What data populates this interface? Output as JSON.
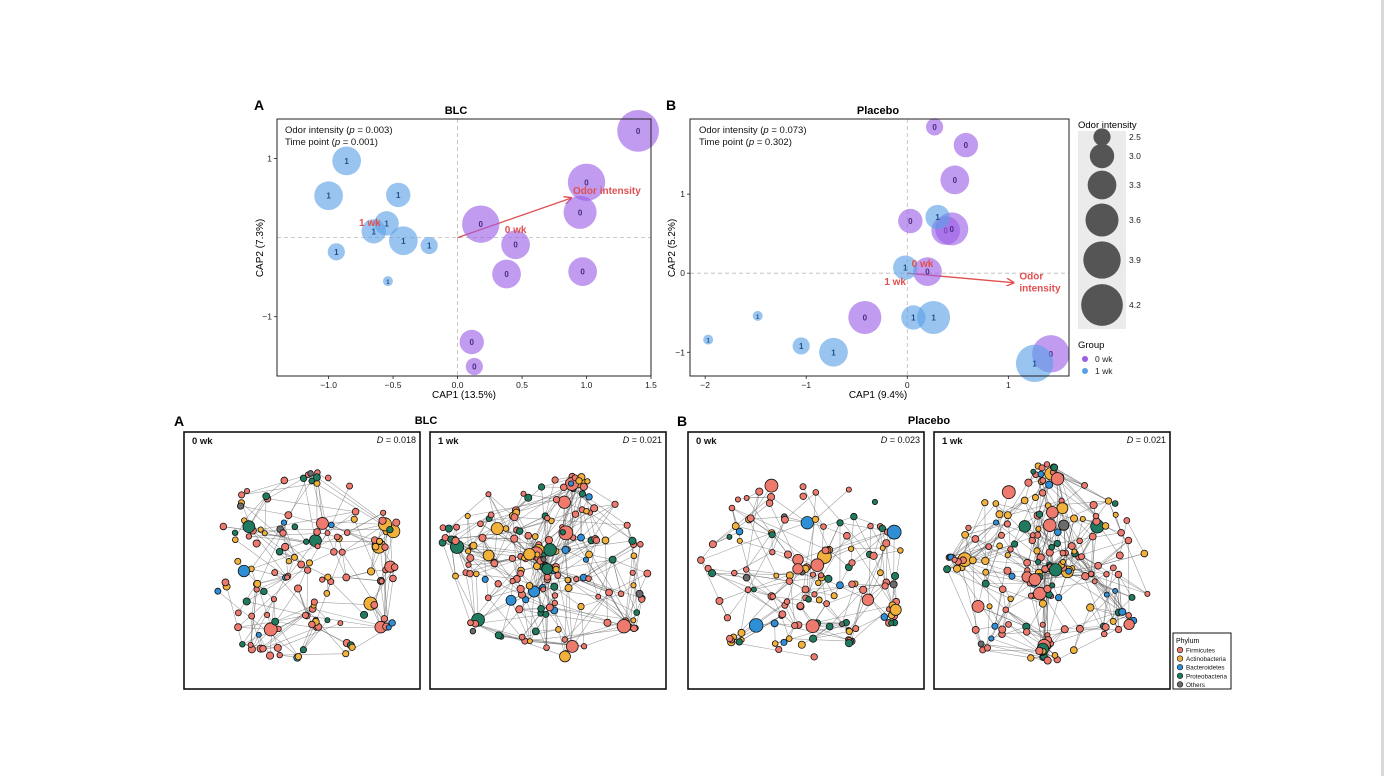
{
  "figure": {
    "colors": {
      "group_0wk": "#9b5de5",
      "group_1wk": "#5aa0e6",
      "arrow": "#e05050",
      "legend_bubble": "#555555"
    }
  },
  "chart_data": [
    {
      "type": "scatter",
      "panel_letter": "A",
      "title": "BLC",
      "xlabel": "CAP1 (13.5%)",
      "ylabel": "CAP2 (7.3%)",
      "xlim": [
        -1.4,
        1.5
      ],
      "ylim": [
        -1.75,
        1.5
      ],
      "xticks": [
        -1.0,
        -0.5,
        0.0,
        0.5,
        1.0,
        1.5
      ],
      "xtick_labels": [
        "−1.0",
        "−0.5",
        "0.0",
        "0.5",
        "1.0",
        "1.5"
      ],
      "yticks": [
        1,
        -1
      ],
      "ytick_labels": [
        "1",
        "−1"
      ],
      "annotations": [
        "Odor intensity (p = 0.003)",
        "Time point (p = 0.001)"
      ],
      "centroids": [
        {
          "label": "1 wk",
          "x": -0.68,
          "y": 0.15
        },
        {
          "label": "0 wk",
          "x": 0.45,
          "y": 0.06
        }
      ],
      "arrow": {
        "label": "Odor intensity",
        "x": 0.88,
        "y": 0.5
      },
      "series": [
        {
          "name": "0 wk",
          "label": "0",
          "points": [
            {
              "x": 1.4,
              "y": 1.35,
              "size": 4.2
            },
            {
              "x": 1.0,
              "y": 0.7,
              "size": 3.9
            },
            {
              "x": 0.95,
              "y": 0.32,
              "size": 3.6
            },
            {
              "x": 0.18,
              "y": 0.17,
              "size": 3.9
            },
            {
              "x": 0.45,
              "y": -0.09,
              "size": 3.3
            },
            {
              "x": 0.38,
              "y": -0.46,
              "size": 3.3
            },
            {
              "x": 0.97,
              "y": -0.43,
              "size": 3.3
            },
            {
              "x": 0.11,
              "y": -1.32,
              "size": 3.0
            },
            {
              "x": 0.13,
              "y": -1.63,
              "size": 2.5
            }
          ]
        },
        {
          "name": "1 wk",
          "label": "1",
          "points": [
            {
              "x": -0.86,
              "y": 0.97,
              "size": 3.3
            },
            {
              "x": -1.0,
              "y": 0.53,
              "size": 3.3
            },
            {
              "x": -0.46,
              "y": 0.54,
              "size": 3.0
            },
            {
              "x": -0.55,
              "y": 0.18,
              "size": 3.0
            },
            {
              "x": -0.65,
              "y": 0.08,
              "size": 3.0
            },
            {
              "x": -0.42,
              "y": -0.04,
              "size": 3.3
            },
            {
              "x": -0.22,
              "y": -0.1,
              "size": 2.5
            },
            {
              "x": -0.94,
              "y": -0.18,
              "size": 2.5
            },
            {
              "x": -0.54,
              "y": -0.55,
              "size": 2.0
            }
          ]
        }
      ]
    },
    {
      "type": "scatter",
      "panel_letter": "B",
      "title": "Placebo",
      "xlabel": "CAP1 (9.4%)",
      "ylabel": "CAP2 (5.2%)",
      "xlim": [
        -2.15,
        1.6
      ],
      "ylim": [
        -1.3,
        1.95
      ],
      "xticks": [
        -2,
        -1,
        0,
        1
      ],
      "xtick_labels": [
        "−2",
        "−1",
        "0",
        "1"
      ],
      "yticks": [
        1,
        0,
        -1
      ],
      "ytick_labels": [
        "1",
        "0",
        "−1"
      ],
      "annotations": [
        "Odor intensity (p = 0.073)",
        "Time point (p = 0.302)"
      ],
      "centroids": [
        {
          "label": "0 wk",
          "x": 0.15,
          "y": 0.08
        },
        {
          "label": "1 wk",
          "x": -0.12,
          "y": -0.15
        }
      ],
      "arrow": {
        "label": "Odor intensity",
        "x": 1.05,
        "y": -0.12
      },
      "series": [
        {
          "name": "0 wk",
          "label": "0",
          "points": [
            {
              "x": 0.27,
              "y": 1.85,
              "size": 2.5
            },
            {
              "x": 0.58,
              "y": 1.62,
              "size": 3.0
            },
            {
              "x": 0.47,
              "y": 1.18,
              "size": 3.3
            },
            {
              "x": 0.03,
              "y": 0.66,
              "size": 3.0
            },
            {
              "x": 0.38,
              "y": 0.54,
              "size": 3.3
            },
            {
              "x": 0.44,
              "y": 0.56,
              "size": 3.6
            },
            {
              "x": 0.2,
              "y": 0.02,
              "size": 3.3
            },
            {
              "x": -0.42,
              "y": -0.56,
              "size": 3.6
            },
            {
              "x": 1.42,
              "y": -1.02,
              "size": 3.9
            }
          ]
        },
        {
          "name": "1 wk",
          "label": "1",
          "points": [
            {
              "x": 0.3,
              "y": 0.71,
              "size": 3.0
            },
            {
              "x": -0.02,
              "y": 0.07,
              "size": 3.0
            },
            {
              "x": 0.06,
              "y": -0.56,
              "size": 3.0
            },
            {
              "x": 0.26,
              "y": -0.56,
              "size": 3.6
            },
            {
              "x": -0.73,
              "y": -1.0,
              "size": 3.3
            },
            {
              "x": -1.05,
              "y": -0.92,
              "size": 2.5
            },
            {
              "x": -1.48,
              "y": -0.54,
              "size": 2.0
            },
            {
              "x": -1.97,
              "y": -0.84,
              "size": 2.0
            },
            {
              "x": 1.26,
              "y": -1.14,
              "size": 3.9
            }
          ]
        }
      ]
    }
  ],
  "bubble_legend": {
    "title": "Odor intensity",
    "levels": [
      {
        "label": "2.5",
        "value": 2.5
      },
      {
        "label": "3.0",
        "value": 3.0
      },
      {
        "label": "3.3",
        "value": 3.3
      },
      {
        "label": "3.6",
        "value": 3.6
      },
      {
        "label": "3.9",
        "value": 3.9
      },
      {
        "label": "4.2",
        "value": 4.2
      }
    ]
  },
  "group_legend": {
    "title": "Group",
    "items": [
      {
        "label": "0 wk",
        "color": "#9b5de5"
      },
      {
        "label": "1 wk",
        "color": "#5aa0e6"
      }
    ]
  },
  "networks": {
    "section_letters": [
      "A",
      "B"
    ],
    "section_titles": [
      "BLC",
      "Placebo"
    ],
    "panels": [
      {
        "label": "0 wk",
        "stat": "D = 0.018"
      },
      {
        "label": "1 wk",
        "stat": "D = 0.021"
      },
      {
        "label": "0 wk",
        "stat": "D = 0.023"
      },
      {
        "label": "1 wk",
        "stat": "D = 0.021"
      }
    ]
  },
  "phylum_legend": {
    "title": "Phylum",
    "items": [
      {
        "label": "Firmicutes",
        "color": "#ee7a6e"
      },
      {
        "label": "Actinobacteria",
        "color": "#f2b13b"
      },
      {
        "label": "Bacteroidetes",
        "color": "#2f8fd6"
      },
      {
        "label": "Proteobacteria",
        "color": "#1f7a5f"
      },
      {
        "label": "Others",
        "color": "#6b6b6b"
      }
    ]
  }
}
